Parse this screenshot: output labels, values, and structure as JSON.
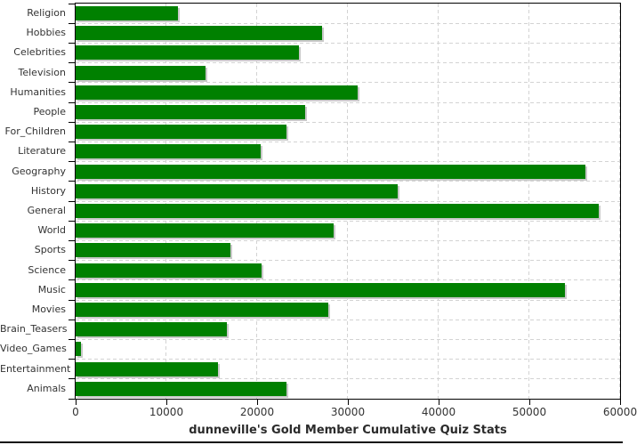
{
  "title": "dunneville's Gold Member Cumulative Quiz Stats",
  "chart_data": {
    "type": "bar",
    "orientation": "horizontal",
    "title": "dunneville's Gold Member Cumulative Quiz Stats",
    "categories": [
      "Religion",
      "Hobbies",
      "Celebrities",
      "Television",
      "Humanities",
      "People",
      "For_Children",
      "Literature",
      "Geography",
      "History",
      "General",
      "World",
      "Sports",
      "Science",
      "Music",
      "Movies",
      "Brain_Teasers",
      "Video_Games",
      "Entertainment",
      "Animals"
    ],
    "values": [
      11300,
      27200,
      24600,
      14300,
      31100,
      25300,
      23200,
      20400,
      56200,
      35500,
      57600,
      28400,
      17100,
      20500,
      53900,
      27800,
      16700,
      600,
      15700,
      23200
    ],
    "xlabel": "",
    "ylabel": "",
    "xlim": [
      0,
      60000
    ],
    "x_ticks": [
      0,
      10000,
      20000,
      30000,
      40000,
      50000,
      60000
    ],
    "x_tick_labels": [
      "0",
      "10000",
      "20000",
      "30000",
      "40000",
      "50000",
      "60000"
    ],
    "grid": "dashed-both",
    "legend": "none",
    "bar_color": "#008000",
    "shadow_color": "#c9c9c9",
    "gridline_color": "#d3d3d3",
    "axis_color": "#000000",
    "label_color": "#333333",
    "background_color": "#ffffff"
  }
}
